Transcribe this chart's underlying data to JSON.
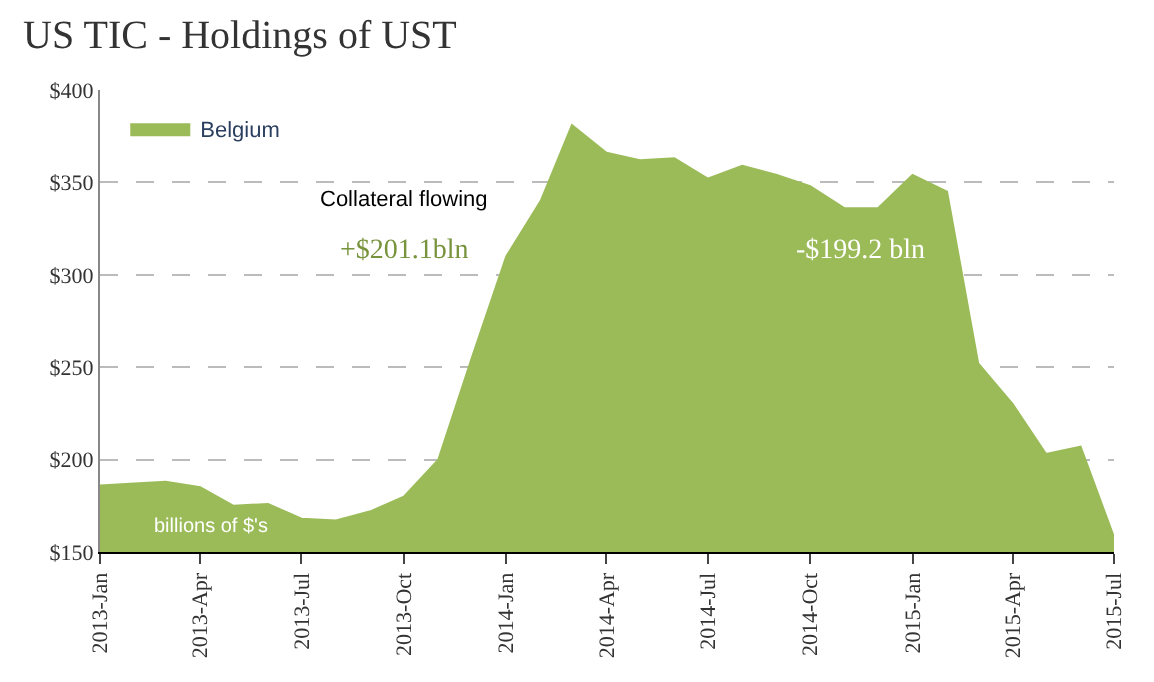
{
  "chart_data": {
    "type": "area",
    "title": "US TIC - Holdings of UST",
    "x": [
      "2013-01",
      "2013-02",
      "2013-03",
      "2013-04",
      "2013-05",
      "2013-06",
      "2013-07",
      "2013-08",
      "2013-09",
      "2013-10",
      "2013-11",
      "2013-12",
      "2014-01",
      "2014-02",
      "2014-03",
      "2014-04",
      "2014-05",
      "2014-06",
      "2014-07",
      "2014-08",
      "2014-09",
      "2014-10",
      "2014-11",
      "2014-12",
      "2015-01",
      "2015-02",
      "2015-03",
      "2015-04",
      "2015-05",
      "2015-06",
      "2015-07"
    ],
    "series": [
      {
        "name": "Belgium",
        "color": "#9bbb59",
        "values": [
          186,
          187,
          188,
          185,
          175,
          176,
          168,
          167,
          172,
          180,
          200,
          255,
          310,
          340,
          381,
          366,
          362,
          363,
          352,
          359,
          354,
          348,
          336,
          336,
          354,
          345,
          252,
          230,
          203,
          207,
          158
        ]
      }
    ],
    "xlim": [
      "2013-01",
      "2015-07"
    ],
    "xticks": [
      {
        "value": "2013-01",
        "label": "2013-Jan"
      },
      {
        "value": "2013-04",
        "label": "2013-Apr"
      },
      {
        "value": "2013-07",
        "label": "2013-Jul"
      },
      {
        "value": "2013-10",
        "label": "2013-Oct"
      },
      {
        "value": "2014-01",
        "label": "2014-Jan"
      },
      {
        "value": "2014-04",
        "label": "2014-Apr"
      },
      {
        "value": "2014-07",
        "label": "2014-Jul"
      },
      {
        "value": "2014-10",
        "label": "2014-Oct"
      },
      {
        "value": "2015-01",
        "label": "2015-Jan"
      },
      {
        "value": "2015-04",
        "label": "2015-Apr"
      },
      {
        "value": "2015-07",
        "label": "2015-Jul"
      }
    ],
    "ylim": [
      150,
      400
    ],
    "yticks": [
      {
        "value": 150,
        "label": "$150"
      },
      {
        "value": 200,
        "label": "$200"
      },
      {
        "value": 250,
        "label": "$250"
      },
      {
        "value": 300,
        "label": "$300"
      },
      {
        "value": 350,
        "label": "$350"
      },
      {
        "value": 400,
        "label": "$400"
      }
    ],
    "grid": "y",
    "legend": "top left",
    "annotations": [
      "Collateral flowing",
      "+$201.1bln",
      "-$199.2 bln",
      "billions of $'s"
    ]
  }
}
